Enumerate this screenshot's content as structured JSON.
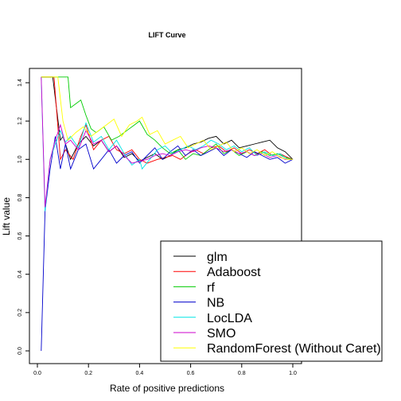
{
  "chart_data": {
    "type": "line",
    "title": "LIFT Curve",
    "xlabel": "Rate of positive predictions",
    "ylabel": "Lift value",
    "xlim": [
      0,
      1.0
    ],
    "ylim": [
      0,
      1.45
    ],
    "xticks": [
      "0.0",
      "0.2",
      "0.4",
      "0.6",
      "0.8",
      "1.0"
    ],
    "yticks": [
      "0.0",
      "0.2",
      "0.4",
      "0.6",
      "0.8",
      "1.0",
      "1.2",
      "1.4"
    ],
    "legend_position": "bottom-right",
    "grid": false,
    "series": [
      {
        "name": "glm",
        "color": "#000000",
        "points": [
          [
            0.015,
            1.43
          ],
          [
            0.03,
            1.43
          ],
          [
            0.06,
            1.43
          ],
          [
            0.09,
            1.1
          ],
          [
            0.1,
            1.12
          ],
          [
            0.13,
            1.0
          ],
          [
            0.16,
            1.08
          ],
          [
            0.19,
            1.12
          ],
          [
            0.22,
            1.07
          ],
          [
            0.25,
            1.1
          ],
          [
            0.28,
            1.04
          ],
          [
            0.31,
            1.07
          ],
          [
            0.34,
            1.01
          ],
          [
            0.37,
            1.03
          ],
          [
            0.4,
            0.99
          ],
          [
            0.43,
            1.01
          ],
          [
            0.46,
            1.03
          ],
          [
            0.49,
            1.0
          ],
          [
            0.52,
            1.02
          ],
          [
            0.55,
            1.05
          ],
          [
            0.58,
            1.06
          ],
          [
            0.61,
            1.08
          ],
          [
            0.64,
            1.09
          ],
          [
            0.67,
            1.11
          ],
          [
            0.7,
            1.12
          ],
          [
            0.73,
            1.08
          ],
          [
            0.76,
            1.1
          ],
          [
            0.79,
            1.06
          ],
          [
            0.82,
            1.07
          ],
          [
            0.85,
            1.08
          ],
          [
            0.88,
            1.09
          ],
          [
            0.91,
            1.1
          ],
          [
            0.94,
            1.06
          ],
          [
            0.97,
            1.04
          ],
          [
            1.0,
            1.0
          ]
        ]
      },
      {
        "name": "Adaboost",
        "color": "#ff0000",
        "points": [
          [
            0.015,
            1.43
          ],
          [
            0.05,
            1.43
          ],
          [
            0.065,
            1.43
          ],
          [
            0.09,
            1.0
          ],
          [
            0.11,
            1.05
          ],
          [
            0.14,
            1.0
          ],
          [
            0.17,
            1.12
          ],
          [
            0.19,
            1.18
          ],
          [
            0.22,
            1.05
          ],
          [
            0.25,
            1.1
          ],
          [
            0.28,
            1.12
          ],
          [
            0.31,
            1.05
          ],
          [
            0.34,
            1.03
          ],
          [
            0.37,
            1.05
          ],
          [
            0.4,
            1.0
          ],
          [
            0.43,
            0.98
          ],
          [
            0.47,
            1.0
          ],
          [
            0.5,
            1.01
          ],
          [
            0.53,
            1.02
          ],
          [
            0.56,
            1.0
          ],
          [
            0.59,
            1.03
          ],
          [
            0.62,
            1.05
          ],
          [
            0.65,
            1.03
          ],
          [
            0.68,
            1.06
          ],
          [
            0.71,
            1.07
          ],
          [
            0.74,
            1.04
          ],
          [
            0.77,
            1.06
          ],
          [
            0.8,
            1.03
          ],
          [
            0.83,
            1.05
          ],
          [
            0.86,
            1.03
          ],
          [
            0.89,
            1.05
          ],
          [
            0.92,
            1.02
          ],
          [
            0.95,
            1.03
          ],
          [
            0.98,
            1.01
          ],
          [
            1.0,
            1.0
          ]
        ]
      },
      {
        "name": "rf",
        "color": "#00cc00",
        "points": [
          [
            0.015,
            1.43
          ],
          [
            0.06,
            1.43
          ],
          [
            0.12,
            1.43
          ],
          [
            0.13,
            1.27
          ],
          [
            0.15,
            1.29
          ],
          [
            0.17,
            1.31
          ],
          [
            0.19,
            1.23
          ],
          [
            0.21,
            1.16
          ],
          [
            0.23,
            1.14
          ],
          [
            0.26,
            1.17
          ],
          [
            0.29,
            1.1
          ],
          [
            0.32,
            1.12
          ],
          [
            0.35,
            1.15
          ],
          [
            0.38,
            1.18
          ],
          [
            0.4,
            1.2
          ],
          [
            0.43,
            1.13
          ],
          [
            0.46,
            1.1
          ],
          [
            0.49,
            1.06
          ],
          [
            0.52,
            1.03
          ],
          [
            0.55,
            1.05
          ],
          [
            0.58,
            1.0
          ],
          [
            0.61,
            1.03
          ],
          [
            0.64,
            1.02
          ],
          [
            0.67,
            1.05
          ],
          [
            0.7,
            1.08
          ],
          [
            0.73,
            1.03
          ],
          [
            0.76,
            1.05
          ],
          [
            0.79,
            1.02
          ],
          [
            0.82,
            1.04
          ],
          [
            0.85,
            1.02
          ],
          [
            0.88,
            1.04
          ],
          [
            0.91,
            1.02
          ],
          [
            0.94,
            1.03
          ],
          [
            0.97,
            1.01
          ],
          [
            1.0,
            1.0
          ]
        ]
      },
      {
        "name": "NB",
        "color": "#0000cc",
        "points": [
          [
            0.015,
            0.0
          ],
          [
            0.03,
            0.73
          ],
          [
            0.05,
            0.95
          ],
          [
            0.07,
            1.12
          ],
          [
            0.09,
            0.95
          ],
          [
            0.11,
            1.08
          ],
          [
            0.13,
            0.95
          ],
          [
            0.16,
            1.05
          ],
          [
            0.19,
            1.08
          ],
          [
            0.22,
            0.95
          ],
          [
            0.25,
            1.0
          ],
          [
            0.28,
            1.05
          ],
          [
            0.31,
            0.98
          ],
          [
            0.34,
            1.02
          ],
          [
            0.37,
            1.04
          ],
          [
            0.4,
            0.98
          ],
          [
            0.43,
            1.02
          ],
          [
            0.46,
            1.06
          ],
          [
            0.49,
            1.0
          ],
          [
            0.52,
            1.04
          ],
          [
            0.55,
            1.07
          ],
          [
            0.58,
            1.02
          ],
          [
            0.61,
            1.05
          ],
          [
            0.64,
            1.02
          ],
          [
            0.67,
            1.04
          ],
          [
            0.7,
            1.06
          ],
          [
            0.73,
            1.02
          ],
          [
            0.76,
            1.05
          ],
          [
            0.79,
            1.03
          ],
          [
            0.82,
            1.01
          ],
          [
            0.85,
            1.04
          ],
          [
            0.88,
            1.02
          ],
          [
            0.91,
            1.0
          ],
          [
            0.94,
            1.01
          ],
          [
            0.97,
            0.98
          ],
          [
            1.0,
            1.0
          ]
        ]
      },
      {
        "name": "LocLDA",
        "color": "#00e5e5",
        "points": [
          [
            0.015,
            1.43
          ],
          [
            0.03,
            0.73
          ],
          [
            0.05,
            1.0
          ],
          [
            0.07,
            1.08
          ],
          [
            0.09,
            1.15
          ],
          [
            0.11,
            1.09
          ],
          [
            0.13,
            1.12
          ],
          [
            0.16,
            1.06
          ],
          [
            0.19,
            1.19
          ],
          [
            0.22,
            1.09
          ],
          [
            0.25,
            1.12
          ],
          [
            0.28,
            1.05
          ],
          [
            0.31,
            1.1
          ],
          [
            0.34,
            1.03
          ],
          [
            0.37,
            0.97
          ],
          [
            0.4,
            1.0
          ],
          [
            0.41,
            0.95
          ],
          [
            0.44,
            1.0
          ],
          [
            0.47,
            1.05
          ],
          [
            0.5,
            1.07
          ],
          [
            0.53,
            1.03
          ],
          [
            0.56,
            1.05
          ],
          [
            0.59,
            1.07
          ],
          [
            0.62,
            1.05
          ],
          [
            0.65,
            1.07
          ],
          [
            0.68,
            1.1
          ],
          [
            0.71,
            1.08
          ],
          [
            0.74,
            1.05
          ],
          [
            0.77,
            1.07
          ],
          [
            0.8,
            1.04
          ],
          [
            0.83,
            1.06
          ],
          [
            0.86,
            1.02
          ],
          [
            0.89,
            1.04
          ],
          [
            0.92,
            1.02
          ],
          [
            0.95,
            1.03
          ],
          [
            0.98,
            1.0
          ],
          [
            1.0,
            1.0
          ]
        ]
      },
      {
        "name": "SMO",
        "color": "#cc00cc",
        "points": [
          [
            0.015,
            1.43
          ],
          [
            0.03,
            0.75
          ],
          [
            0.05,
            1.0
          ],
          [
            0.07,
            1.1
          ],
          [
            0.09,
            1.18
          ],
          [
            0.11,
            1.08
          ],
          [
            0.13,
            1.1
          ],
          [
            0.16,
            1.05
          ],
          [
            0.19,
            1.15
          ],
          [
            0.22,
            1.08
          ],
          [
            0.25,
            1.1
          ],
          [
            0.28,
            1.04
          ],
          [
            0.31,
            1.07
          ],
          [
            0.34,
            1.02
          ],
          [
            0.37,
            0.98
          ],
          [
            0.4,
            0.99
          ],
          [
            0.43,
            1.0
          ],
          [
            0.46,
            1.02
          ],
          [
            0.49,
            1.03
          ],
          [
            0.52,
            1.02
          ],
          [
            0.55,
            1.04
          ],
          [
            0.58,
            1.05
          ],
          [
            0.61,
            1.04
          ],
          [
            0.64,
            1.06
          ],
          [
            0.67,
            1.07
          ],
          [
            0.7,
            1.06
          ],
          [
            0.73,
            1.04
          ],
          [
            0.76,
            1.05
          ],
          [
            0.79,
            1.03
          ],
          [
            0.82,
            1.04
          ],
          [
            0.85,
            1.02
          ],
          [
            0.88,
            1.03
          ],
          [
            0.91,
            1.01
          ],
          [
            0.94,
            1.02
          ],
          [
            0.97,
            1.0
          ],
          [
            1.0,
            1.0
          ]
        ]
      },
      {
        "name": "RandomForest (Without Caret)",
        "color": "#ffff00",
        "points": [
          [
            0.015,
            1.43
          ],
          [
            0.05,
            1.43
          ],
          [
            0.08,
            1.43
          ],
          [
            0.1,
            1.2
          ],
          [
            0.12,
            1.1
          ],
          [
            0.15,
            1.14
          ],
          [
            0.18,
            1.17
          ],
          [
            0.21,
            1.12
          ],
          [
            0.24,
            1.15
          ],
          [
            0.27,
            1.18
          ],
          [
            0.3,
            1.21
          ],
          [
            0.33,
            1.12
          ],
          [
            0.36,
            1.18
          ],
          [
            0.39,
            1.2
          ],
          [
            0.41,
            1.22
          ],
          [
            0.44,
            1.13
          ],
          [
            0.47,
            1.15
          ],
          [
            0.5,
            1.08
          ],
          [
            0.53,
            1.1
          ],
          [
            0.56,
            1.12
          ],
          [
            0.59,
            1.06
          ],
          [
            0.62,
            1.08
          ],
          [
            0.65,
            1.1
          ],
          [
            0.68,
            1.05
          ],
          [
            0.71,
            1.07
          ],
          [
            0.74,
            1.09
          ],
          [
            0.77,
            1.04
          ],
          [
            0.8,
            1.06
          ],
          [
            0.83,
            1.03
          ],
          [
            0.86,
            1.05
          ],
          [
            0.89,
            1.02
          ],
          [
            0.92,
            1.04
          ],
          [
            0.95,
            1.01
          ],
          [
            0.98,
            1.0
          ],
          [
            1.0,
            1.0
          ]
        ]
      }
    ]
  }
}
